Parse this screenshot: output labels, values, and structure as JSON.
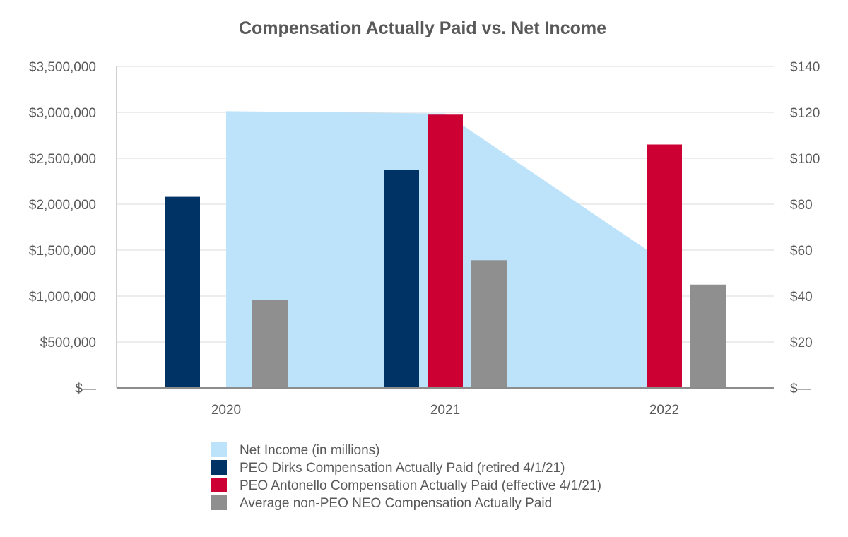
{
  "chart_data": {
    "type": "bar",
    "title": "Compensation Actually Paid vs. Net Income",
    "categories": [
      "2020",
      "2021",
      "2022"
    ],
    "left_axis": {
      "ylim": [
        0,
        3500000
      ],
      "ticks": [
        0,
        500000,
        1000000,
        1500000,
        2000000,
        2500000,
        3000000,
        3500000
      ],
      "tick_labels": [
        "$—",
        "$500,000",
        "$1,000,000",
        "$1,500,000",
        "$2,000,000",
        "$2,500,000",
        "$3,000,000",
        "$3,500,000"
      ]
    },
    "right_axis": {
      "ylim": [
        0,
        140
      ],
      "ticks": [
        0,
        20,
        40,
        60,
        80,
        100,
        120,
        140
      ],
      "tick_labels": [
        "$—",
        "$20",
        "$40",
        "$60",
        "$80",
        "$100",
        "$120",
        "$140"
      ]
    },
    "grid": true,
    "area_series": {
      "name": "Net Income (in millions)",
      "color": "#bde3fb",
      "values": [
        120.5,
        119.5,
        55
      ]
    },
    "series": [
      {
        "name": "PEO Dirks Compensation Actually Paid (retired 4/1/21)",
        "color": "#003365",
        "values": [
          2080000,
          2375000,
          null
        ]
      },
      {
        "name": "PEO Antonello Compensation Actually Paid (effective 4/1/21)",
        "color": "#cc0033",
        "values": [
          null,
          2975000,
          2650000
        ]
      },
      {
        "name": "Average non-PEO NEO Compensation Actually Paid",
        "color": "#8f8f8f",
        "values": [
          960000,
          1390000,
          1125000
        ]
      }
    ],
    "legend": [
      "Net Income (in millions)",
      "PEO Dirks Compensation Actually Paid (retired 4/1/21)",
      "PEO Antonello Compensation Actually Paid (effective 4/1/21)",
      "Average non-PEO NEO Compensation Actually Paid"
    ],
    "legend_position": "bottom"
  }
}
